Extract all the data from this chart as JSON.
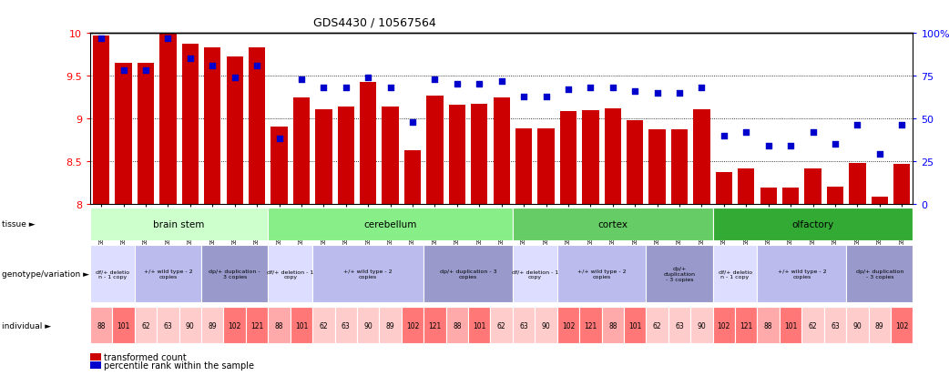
{
  "title": "GDS4430 / 10567564",
  "samples": [
    "GSM792717",
    "GSM792694",
    "GSM792693",
    "GSM792713",
    "GSM792724",
    "GSM792721",
    "GSM792700",
    "GSM792705",
    "GSM792718",
    "GSM792695",
    "GSM792696",
    "GSM792709",
    "GSM792714",
    "GSM792725",
    "GSM792726",
    "GSM792722",
    "GSM792701",
    "GSM792702",
    "GSM792706",
    "GSM792719",
    "GSM792697",
    "GSM792698",
    "GSM792710",
    "GSM792715",
    "GSM792727",
    "GSM792728",
    "GSM792703",
    "GSM792707",
    "GSM792720",
    "GSM792699",
    "GSM792711",
    "GSM792712",
    "GSM792716",
    "GSM792729",
    "GSM792723",
    "GSM792704",
    "GSM792708"
  ],
  "bar_values": [
    9.97,
    9.65,
    9.65,
    9.99,
    9.88,
    9.83,
    9.72,
    9.83,
    8.9,
    9.25,
    9.11,
    9.14,
    9.43,
    9.14,
    8.63,
    9.27,
    9.16,
    9.17,
    9.25,
    8.88,
    8.88,
    9.08,
    9.1,
    9.12,
    8.98,
    8.87,
    8.87,
    9.11,
    8.37,
    8.41,
    8.19,
    8.19,
    8.41,
    8.2,
    8.48,
    8.08,
    8.47
  ],
  "dot_values": [
    97,
    78,
    78,
    97,
    85,
    81,
    74,
    81,
    38,
    73,
    68,
    68,
    74,
    68,
    48,
    73,
    70,
    70,
    72,
    63,
    63,
    67,
    68,
    68,
    66,
    65,
    65,
    68,
    40,
    42,
    34,
    34,
    42,
    35,
    46,
    29,
    46
  ],
  "ylim": [
    8.0,
    10.0
  ],
  "yticks": [
    8.0,
    8.5,
    9.0,
    9.5,
    10.0
  ],
  "y2lim": [
    0,
    100
  ],
  "y2ticks": [
    0,
    25,
    50,
    75,
    100
  ],
  "bar_color": "#cc0000",
  "dot_color": "#0000cc",
  "tissues": [
    {
      "label": "brain stem",
      "start": 0,
      "end": 7,
      "color": "#ccffcc"
    },
    {
      "label": "cerebellum",
      "start": 8,
      "end": 18,
      "color": "#88ee88"
    },
    {
      "label": "cortex",
      "start": 19,
      "end": 27,
      "color": "#66cc66"
    },
    {
      "label": "olfactory",
      "start": 28,
      "end": 36,
      "color": "#33aa33"
    }
  ],
  "geno_groups": [
    {
      "label": "df/+ deletio\nn - 1 copy",
      "start": 0,
      "end": 1,
      "color": "#ddddff"
    },
    {
      "label": "+/+ wild type - 2\ncopies",
      "start": 2,
      "end": 4,
      "color": "#bbbbee"
    },
    {
      "label": "dp/+ duplication -\n3 copies",
      "start": 5,
      "end": 7,
      "color": "#9999cc"
    },
    {
      "label": "df/+ deletion - 1\ncopy",
      "start": 8,
      "end": 9,
      "color": "#ddddff"
    },
    {
      "label": "+/+ wild type - 2\ncopies",
      "start": 10,
      "end": 14,
      "color": "#bbbbee"
    },
    {
      "label": "dp/+ duplication - 3\ncopies",
      "start": 15,
      "end": 18,
      "color": "#9999cc"
    },
    {
      "label": "df/+ deletion - 1\ncopy",
      "start": 19,
      "end": 20,
      "color": "#ddddff"
    },
    {
      "label": "+/+ wild type - 2\ncopies",
      "start": 21,
      "end": 24,
      "color": "#bbbbee"
    },
    {
      "label": "dp/+\nduplication\n- 3 copies",
      "start": 25,
      "end": 27,
      "color": "#9999cc"
    },
    {
      "label": "df/+ deletio\nn - 1 copy",
      "start": 28,
      "end": 29,
      "color": "#ddddff"
    },
    {
      "label": "+/+ wild type - 2\ncopies",
      "start": 30,
      "end": 33,
      "color": "#bbbbee"
    },
    {
      "label": "dp/+ duplication\n- 3 copies",
      "start": 34,
      "end": 36,
      "color": "#9999cc"
    }
  ],
  "ind_labels": [
    "88",
    "101",
    "62",
    "63",
    "90",
    "89",
    "102",
    "121",
    "88",
    "101",
    "62",
    "63",
    "90",
    "89",
    "102",
    "121",
    "88",
    "101",
    "62",
    "63",
    "90",
    "102",
    "121",
    "88",
    "101",
    "62",
    "63",
    "90",
    "102",
    "121",
    "88",
    "101",
    "62",
    "63",
    "90",
    "89",
    "102"
  ],
  "ind_colors": [
    "#ffaaaa",
    "#ff7777",
    "#ffcccc",
    "#ffcccc",
    "#ffcccc",
    "#ffcccc",
    "#ff7777",
    "#ff7777",
    "#ffaaaa",
    "#ff7777",
    "#ffcccc",
    "#ffcccc",
    "#ffcccc",
    "#ffcccc",
    "#ff7777",
    "#ff7777",
    "#ffaaaa",
    "#ff7777",
    "#ffcccc",
    "#ffcccc",
    "#ffcccc",
    "#ff7777",
    "#ff7777",
    "#ffaaaa",
    "#ff7777",
    "#ffcccc",
    "#ffcccc",
    "#ffcccc",
    "#ff7777",
    "#ff7777",
    "#ffaaaa",
    "#ff7777",
    "#ffcccc",
    "#ffcccc",
    "#ffcccc",
    "#ffcccc",
    "#ff7777"
  ],
  "row_labels": [
    "tissue",
    "genotype/variation",
    "individual"
  ],
  "legend_labels": [
    "transformed count",
    "percentile rank within the sample"
  ],
  "legend_colors": [
    "#cc0000",
    "#0000cc"
  ]
}
